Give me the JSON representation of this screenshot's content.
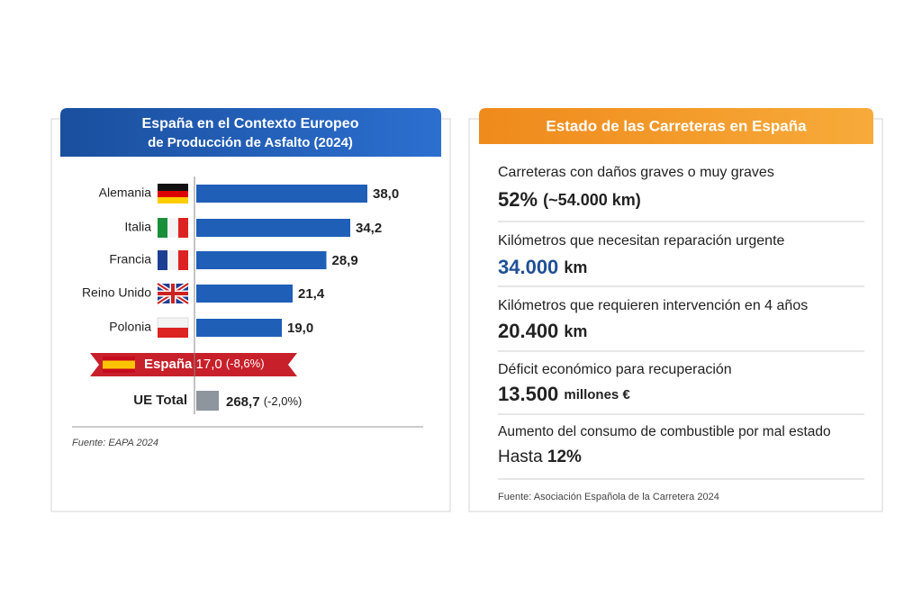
{
  "chart_data": {
    "type": "bar",
    "orientation": "horizontal",
    "title": [
      "España en el Contexto Europeo",
      "de Producción de Asfalto (2024)"
    ],
    "categories": [
      "Alemania",
      "Italia",
      "Francia",
      "Reino Unido",
      "Polonia"
    ],
    "values": [
      38.0,
      34.2,
      28.9,
      21.4,
      19.0
    ],
    "value_labels": [
      "38,0",
      "34,2",
      "28,9",
      "21,4",
      "19,0"
    ],
    "color": "#1f5fb8",
    "xlim": [
      0,
      40
    ],
    "highlight": {
      "name": "España",
      "value": "17,0",
      "change": "(-8,6%)"
    },
    "total": {
      "name": "UE Total",
      "value": "268,7",
      "change": "(-2,0%)"
    },
    "source": "Fuente: EAPA 2024"
  },
  "panel": {
    "title": "Estado de las Carreteras en España",
    "items": [
      {
        "label": "Carreteras con daños graves o muy graves",
        "value": "52%",
        "detail": "(~54.000 km)"
      },
      {
        "label": "Kilómetros que necesitan reparación urgente",
        "value": "34.000",
        "detail": "km"
      },
      {
        "label": "Kilómetros que requieren intervención en 4 años",
        "value": "20.400",
        "detail": "km"
      },
      {
        "label": "Déficit económico para recuperación",
        "value": "13.500",
        "detail": "millones €"
      },
      {
        "label": "Aumento del consumo de combustible por mal estado",
        "prefix": "Hasta",
        "value": "12%"
      }
    ],
    "source": "Fuente: Asociación Española de la Carretera 2024"
  }
}
